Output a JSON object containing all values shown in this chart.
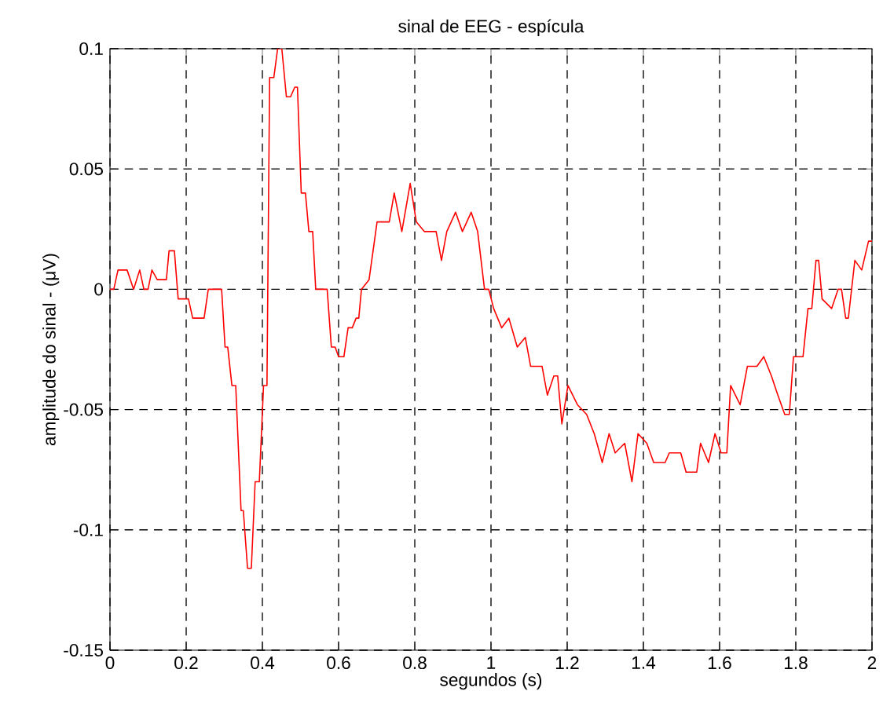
{
  "chart_data": {
    "type": "line",
    "title": "sinal de EEG - espícula",
    "xlabel": "segundos (s)",
    "ylabel": "amplitude do sinal - (μV)",
    "x": [
      0,
      0.01,
      0.021,
      0.045,
      0.062,
      0.078,
      0.089,
      0.1,
      0.11,
      0.124,
      0.137,
      0.148,
      0.155,
      0.169,
      0.179,
      0.206,
      0.217,
      0.247,
      0.258,
      0.293,
      0.302,
      0.309,
      0.32,
      0.33,
      0.344,
      0.35,
      0.361,
      0.371,
      0.381,
      0.392,
      0.403,
      0.412,
      0.419,
      0.43,
      0.44,
      0.451,
      0.463,
      0.474,
      0.485,
      0.492,
      0.502,
      0.513,
      0.522,
      0.532,
      0.54,
      0.57,
      0.581,
      0.591,
      0.6,
      0.614,
      0.625,
      0.636,
      0.646,
      0.653,
      0.66,
      0.68,
      0.701,
      0.733,
      0.746,
      0.766,
      0.788,
      0.804,
      0.825,
      0.856,
      0.87,
      0.884,
      0.907,
      0.925,
      0.948,
      0.965,
      0.983,
      0.994,
      1.007,
      1.028,
      1.047,
      1.069,
      1.09,
      1.104,
      1.134,
      1.148,
      1.165,
      1.175,
      1.186,
      1.202,
      1.227,
      1.251,
      1.271,
      1.292,
      1.31,
      1.326,
      1.351,
      1.37,
      1.386,
      1.409,
      1.427,
      1.457,
      1.468,
      1.498,
      1.512,
      1.54,
      1.55,
      1.571,
      1.588,
      1.604,
      1.619,
      1.629,
      1.654,
      1.673,
      1.698,
      1.716,
      1.736,
      1.753,
      1.771,
      1.783,
      1.794,
      1.819,
      1.832,
      1.842,
      1.853,
      1.86,
      1.869,
      1.894,
      1.911,
      1.92,
      1.931,
      1.938,
      1.955,
      1.973,
      1.991,
      2.0
    ],
    "values": [
      0,
      0,
      0.008,
      0.008,
      0,
      0.008,
      0,
      0,
      0.008,
      0.004,
      0.004,
      0.004,
      0.016,
      0.016,
      -0.004,
      -0.004,
      -0.012,
      -0.012,
      0,
      0,
      -0.024,
      -0.024,
      -0.04,
      -0.04,
      -0.092,
      -0.092,
      -0.116,
      -0.116,
      -0.08,
      -0.08,
      -0.04,
      -0.04,
      0.088,
      0.088,
      0.1,
      0.1,
      0.08,
      0.08,
      0.084,
      0.084,
      0.04,
      0.04,
      0.024,
      0.024,
      0,
      0,
      -0.024,
      -0.024,
      -0.028,
      -0.028,
      -0.016,
      -0.016,
      -0.012,
      -0.012,
      0,
      0.004,
      0.028,
      0.028,
      0.04,
      0.024,
      0.044,
      0.028,
      0.024,
      0.024,
      0.012,
      0.024,
      0.032,
      0.024,
      0.032,
      0.024,
      0,
      0,
      -0.008,
      -0.016,
      -0.012,
      -0.024,
      -0.02,
      -0.032,
      -0.032,
      -0.044,
      -0.036,
      -0.036,
      -0.056,
      -0.04,
      -0.048,
      -0.052,
      -0.06,
      -0.072,
      -0.06,
      -0.068,
      -0.064,
      -0.08,
      -0.06,
      -0.064,
      -0.072,
      -0.072,
      -0.068,
      -0.068,
      -0.076,
      -0.076,
      -0.064,
      -0.072,
      -0.06,
      -0.068,
      -0.068,
      -0.04,
      -0.048,
      -0.032,
      -0.032,
      -0.028,
      -0.036,
      -0.044,
      -0.052,
      -0.052,
      -0.028,
      -0.028,
      -0.008,
      -0.008,
      0.012,
      0.012,
      -0.004,
      -0.008,
      0,
      0,
      -0.012,
      -0.012,
      0.012,
      0.008,
      0.02,
      0.02
    ],
    "color": "#ff0000",
    "xlim": [
      0,
      2
    ],
    "ylim": [
      -0.15,
      0.1
    ],
    "xticks": [
      0,
      0.2,
      0.4,
      0.6,
      0.8,
      1,
      1.2,
      1.4,
      1.6,
      1.8,
      2
    ],
    "yticks": [
      -0.15,
      -0.1,
      -0.05,
      0,
      0.05,
      0.1
    ],
    "grid": true,
    "marker": "none",
    "line_style": "solid"
  }
}
